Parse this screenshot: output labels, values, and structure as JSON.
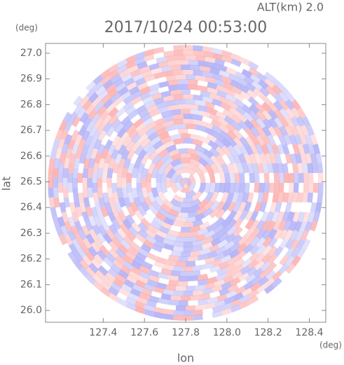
{
  "chart_data": {
    "type": "radar-field",
    "title": "2017/10/24 00:53:00",
    "subtitle": "ALT(km) 2.0",
    "x_label": "lon",
    "y_label": "lat",
    "x_unit": "(deg)",
    "y_unit": "(deg)",
    "xlim": [
      127.12,
      128.48
    ],
    "ylim": [
      25.954,
      27.038
    ],
    "xticks": [
      127.4,
      127.6,
      127.8,
      {
        "value": 128.0,
        "label": "128.0"
      },
      128.2,
      128.4
    ],
    "yticks": [
      {
        "value": 26.0,
        "label": "26.0"
      },
      26.1,
      26.2,
      26.3,
      26.4,
      26.5,
      26.6,
      26.7,
      26.8,
      26.9,
      {
        "value": 27.0,
        "label": "27.0"
      }
    ]
  }
}
